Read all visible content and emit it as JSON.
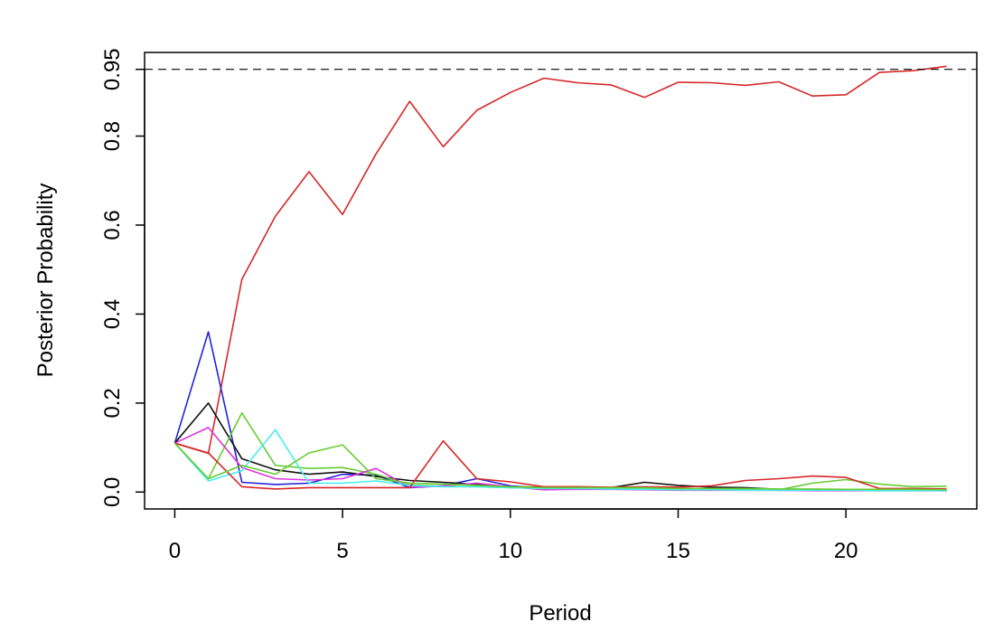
{
  "chart_data": {
    "type": "line",
    "title": "",
    "xlabel": "Period",
    "ylabel": "Posterior Probability",
    "xlim": [
      -0.9,
      23.9
    ],
    "ylim": [
      -0.038,
      0.988
    ],
    "x_ticks": [
      "0",
      "5",
      "10",
      "15",
      "20"
    ],
    "y_ticks": [
      "0.0",
      "0.2",
      "0.4",
      "0.6",
      "0.8",
      "0.95"
    ],
    "threshold": 0.95,
    "grid": false,
    "legend": "none",
    "x": [
      0,
      1,
      2,
      3,
      4,
      5,
      6,
      7,
      8,
      9,
      10,
      11,
      12,
      13,
      14,
      15,
      16,
      17,
      18,
      19,
      20,
      21,
      22,
      23
    ],
    "series": [
      {
        "color": "#d62728",
        "values": [
          0.11,
          0.087,
          0.478,
          0.62,
          0.72,
          0.624,
          0.76,
          0.878,
          0.776,
          0.858,
          0.898,
          0.93,
          0.92,
          0.915,
          0.887,
          0.921,
          0.92,
          0.914,
          0.922,
          0.89,
          0.893,
          0.943,
          0.947,
          0.957
        ]
      },
      {
        "color": "#2222dd",
        "values": [
          0.11,
          0.36,
          0.022,
          0.017,
          0.02,
          0.04,
          0.038,
          0.01,
          0.014,
          0.03,
          0.014,
          0.008,
          0.009,
          0.008,
          0.007,
          0.006,
          0.007,
          0.007,
          0.004,
          0.004,
          0.004,
          0.005,
          0.005,
          0.004
        ]
      },
      {
        "color": "#111111",
        "values": [
          0.11,
          0.2,
          0.075,
          0.05,
          0.04,
          0.045,
          0.035,
          0.026,
          0.022,
          0.017,
          0.012,
          0.011,
          0.01,
          0.01,
          0.022,
          0.015,
          0.011,
          0.01,
          0.006,
          0.006,
          0.005,
          0.004,
          0.004,
          0.003
        ]
      },
      {
        "color": "#66cc33",
        "values": [
          0.11,
          0.03,
          0.178,
          0.06,
          0.053,
          0.055,
          0.04,
          0.016,
          0.013,
          0.012,
          0.01,
          0.011,
          0.012,
          0.01,
          0.008,
          0.006,
          0.007,
          0.006,
          0.005,
          0.02,
          0.028,
          0.018,
          0.012,
          0.013
        ]
      },
      {
        "color": "#dd33dd",
        "values": [
          0.11,
          0.145,
          0.055,
          0.03,
          0.027,
          0.03,
          0.053,
          0.011,
          0.014,
          0.02,
          0.012,
          0.005,
          0.006,
          0.006,
          0.005,
          0.004,
          0.004,
          0.004,
          0.004,
          0.003,
          0.003,
          0.003,
          0.003,
          0.003
        ]
      },
      {
        "color": "#44eeee",
        "values": [
          0.11,
          0.025,
          0.048,
          0.14,
          0.02,
          0.02,
          0.025,
          0.015,
          0.012,
          0.012,
          0.01,
          0.008,
          0.008,
          0.007,
          0.006,
          0.005,
          0.005,
          0.004,
          0.004,
          0.004,
          0.004,
          0.003,
          0.003,
          0.003
        ]
      },
      {
        "color": "#d62728",
        "values": [
          0.11,
          0.088,
          0.012,
          0.007,
          0.01,
          0.01,
          0.01,
          0.01,
          0.115,
          0.03,
          0.023,
          0.012,
          0.012,
          0.011,
          0.012,
          0.011,
          0.014,
          0.026,
          0.03,
          0.036,
          0.033,
          0.008,
          0.008,
          0.007
        ]
      },
      {
        "color": "#66cc33",
        "values": [
          0.11,
          0.03,
          0.06,
          0.04,
          0.088,
          0.106,
          0.03,
          0.02,
          0.018,
          0.015,
          0.012,
          0.01,
          0.01,
          0.01,
          0.01,
          0.008,
          0.008,
          0.008,
          0.007,
          0.007,
          0.006,
          0.006,
          0.006,
          0.005
        ]
      }
    ]
  }
}
